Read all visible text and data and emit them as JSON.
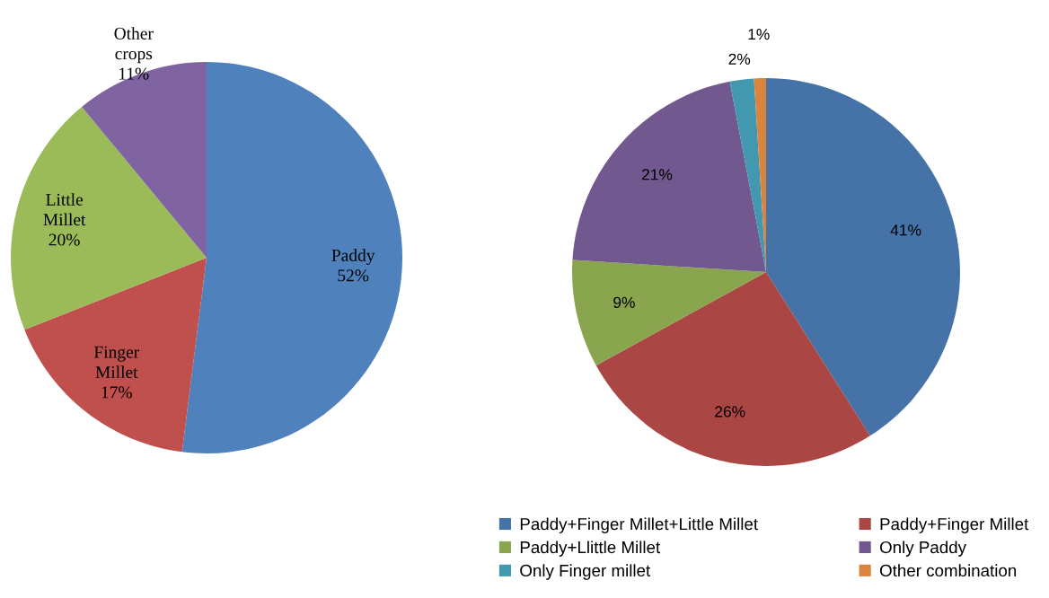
{
  "chart_data": [
    {
      "type": "pie",
      "categories": [
        "Paddy",
        "Finger Millet",
        "Little Millet",
        "Other crops"
      ],
      "values": [
        52,
        17,
        20,
        11
      ],
      "colors": [
        "#4f81bd",
        "#c0504d",
        "#9bbb59",
        "#8064a2"
      ],
      "value_labels": [
        "52%",
        "17%",
        "20%",
        "11%"
      ],
      "legend": false
    },
    {
      "type": "pie",
      "categories": [
        "Paddy+Finger Millet+Little Millet",
        "Paddy+Finger Millet",
        "Paddy+Llittle Millet",
        "Only Paddy",
        "Only Finger millet",
        "Other combination"
      ],
      "values": [
        41,
        26,
        9,
        21,
        2,
        1
      ],
      "colors": [
        "#4572a7",
        "#aa4643",
        "#89a54e",
        "#71588f",
        "#4198af",
        "#db843d"
      ],
      "value_labels": [
        "41%",
        "26%",
        "9%",
        "21%",
        "2%",
        "1%"
      ],
      "legend": "bottom"
    }
  ]
}
